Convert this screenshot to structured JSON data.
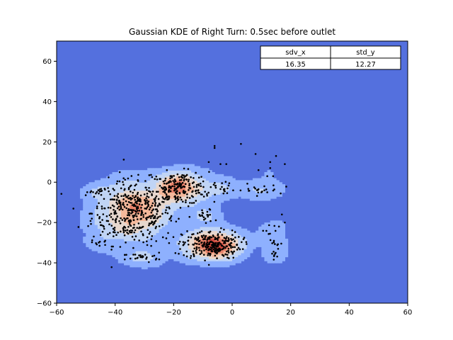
{
  "chart_data": {
    "type": "heatmap",
    "title": "Gaussian KDE of Right Turn: 0.5sec before outlet",
    "xlabel": "",
    "ylabel": "",
    "xlim": [
      -60,
      60
    ],
    "ylim": [
      -60,
      70
    ],
    "x_ticks": [
      -60,
      -40,
      -20,
      0,
      20,
      40,
      60
    ],
    "y_ticks": [
      -60,
      -40,
      -20,
      0,
      20,
      40,
      60
    ],
    "x_tick_labels": [
      "−60",
      "−40",
      "−20",
      "0",
      "20",
      "40",
      "60"
    ],
    "y_tick_labels": [
      "−60",
      "−40",
      "−20",
      "0",
      "20",
      "40",
      "60"
    ],
    "colormap": "coolwarm",
    "colors": {
      "background": "#5470de",
      "level1": "#8eb0fe",
      "level2": "#c0d4f5",
      "level3": "#e7d7ce",
      "level4": "#f4b89b",
      "level5": "#e8826a",
      "level6": "#d24b40",
      "points": "#000000"
    },
    "stats_table": {
      "headers": [
        "sdv_x",
        "std_y"
      ],
      "values": [
        "16.35",
        "12.27"
      ]
    },
    "clusters": [
      {
        "cx": -34,
        "cy": -15,
        "sx": 7,
        "sy": 8,
        "n": 420
      },
      {
        "cx": -18,
        "cy": -3,
        "sx": 5,
        "sy": 4,
        "n": 200
      },
      {
        "cx": -7,
        "cy": -31,
        "sx": 5,
        "sy": 3.5,
        "n": 260
      },
      {
        "cx": -9,
        "cy": -17,
        "sx": 1.5,
        "sy": 2,
        "n": 20
      },
      {
        "cx": -30,
        "cy": -37,
        "sx": 3,
        "sy": 1,
        "n": 25
      },
      {
        "cx": -46,
        "cy": -5,
        "sx": 2,
        "sy": 1,
        "n": 12
      },
      {
        "cx": -45,
        "cy": -30,
        "sx": 1.5,
        "sy": 1,
        "n": 8
      },
      {
        "cx": -4,
        "cy": -3,
        "sx": 3,
        "sy": 1.5,
        "n": 20
      },
      {
        "cx": 8,
        "cy": -4,
        "sx": 4,
        "sy": 1.5,
        "n": 20
      },
      {
        "cx": 14,
        "cy": -36,
        "sx": 1.5,
        "sy": 1,
        "n": 8
      },
      {
        "cx": 15,
        "cy": -30,
        "sx": 2,
        "sy": 1.5,
        "n": 8
      },
      {
        "cx": 14,
        "cy": -24,
        "sx": 2,
        "sy": 1.5,
        "n": 8
      }
    ],
    "scatter_points": [
      [
        -6,
        17
      ],
      [
        -6,
        18
      ],
      [
        3,
        19
      ],
      [
        8,
        14
      ],
      [
        15,
        13
      ],
      [
        18,
        9
      ],
      [
        13,
        10
      ],
      [
        13,
        7
      ],
      [
        9,
        6
      ],
      [
        12,
        3
      ],
      [
        14,
        3
      ],
      [
        -4,
        9
      ],
      [
        -2,
        9
      ],
      [
        -8,
        10
      ],
      [
        11,
        -2
      ],
      [
        11,
        -4
      ],
      [
        12,
        -5
      ],
      [
        17,
        -16
      ],
      [
        18,
        -20
      ],
      [
        16,
        -22
      ],
      [
        10,
        -5
      ]
    ]
  }
}
